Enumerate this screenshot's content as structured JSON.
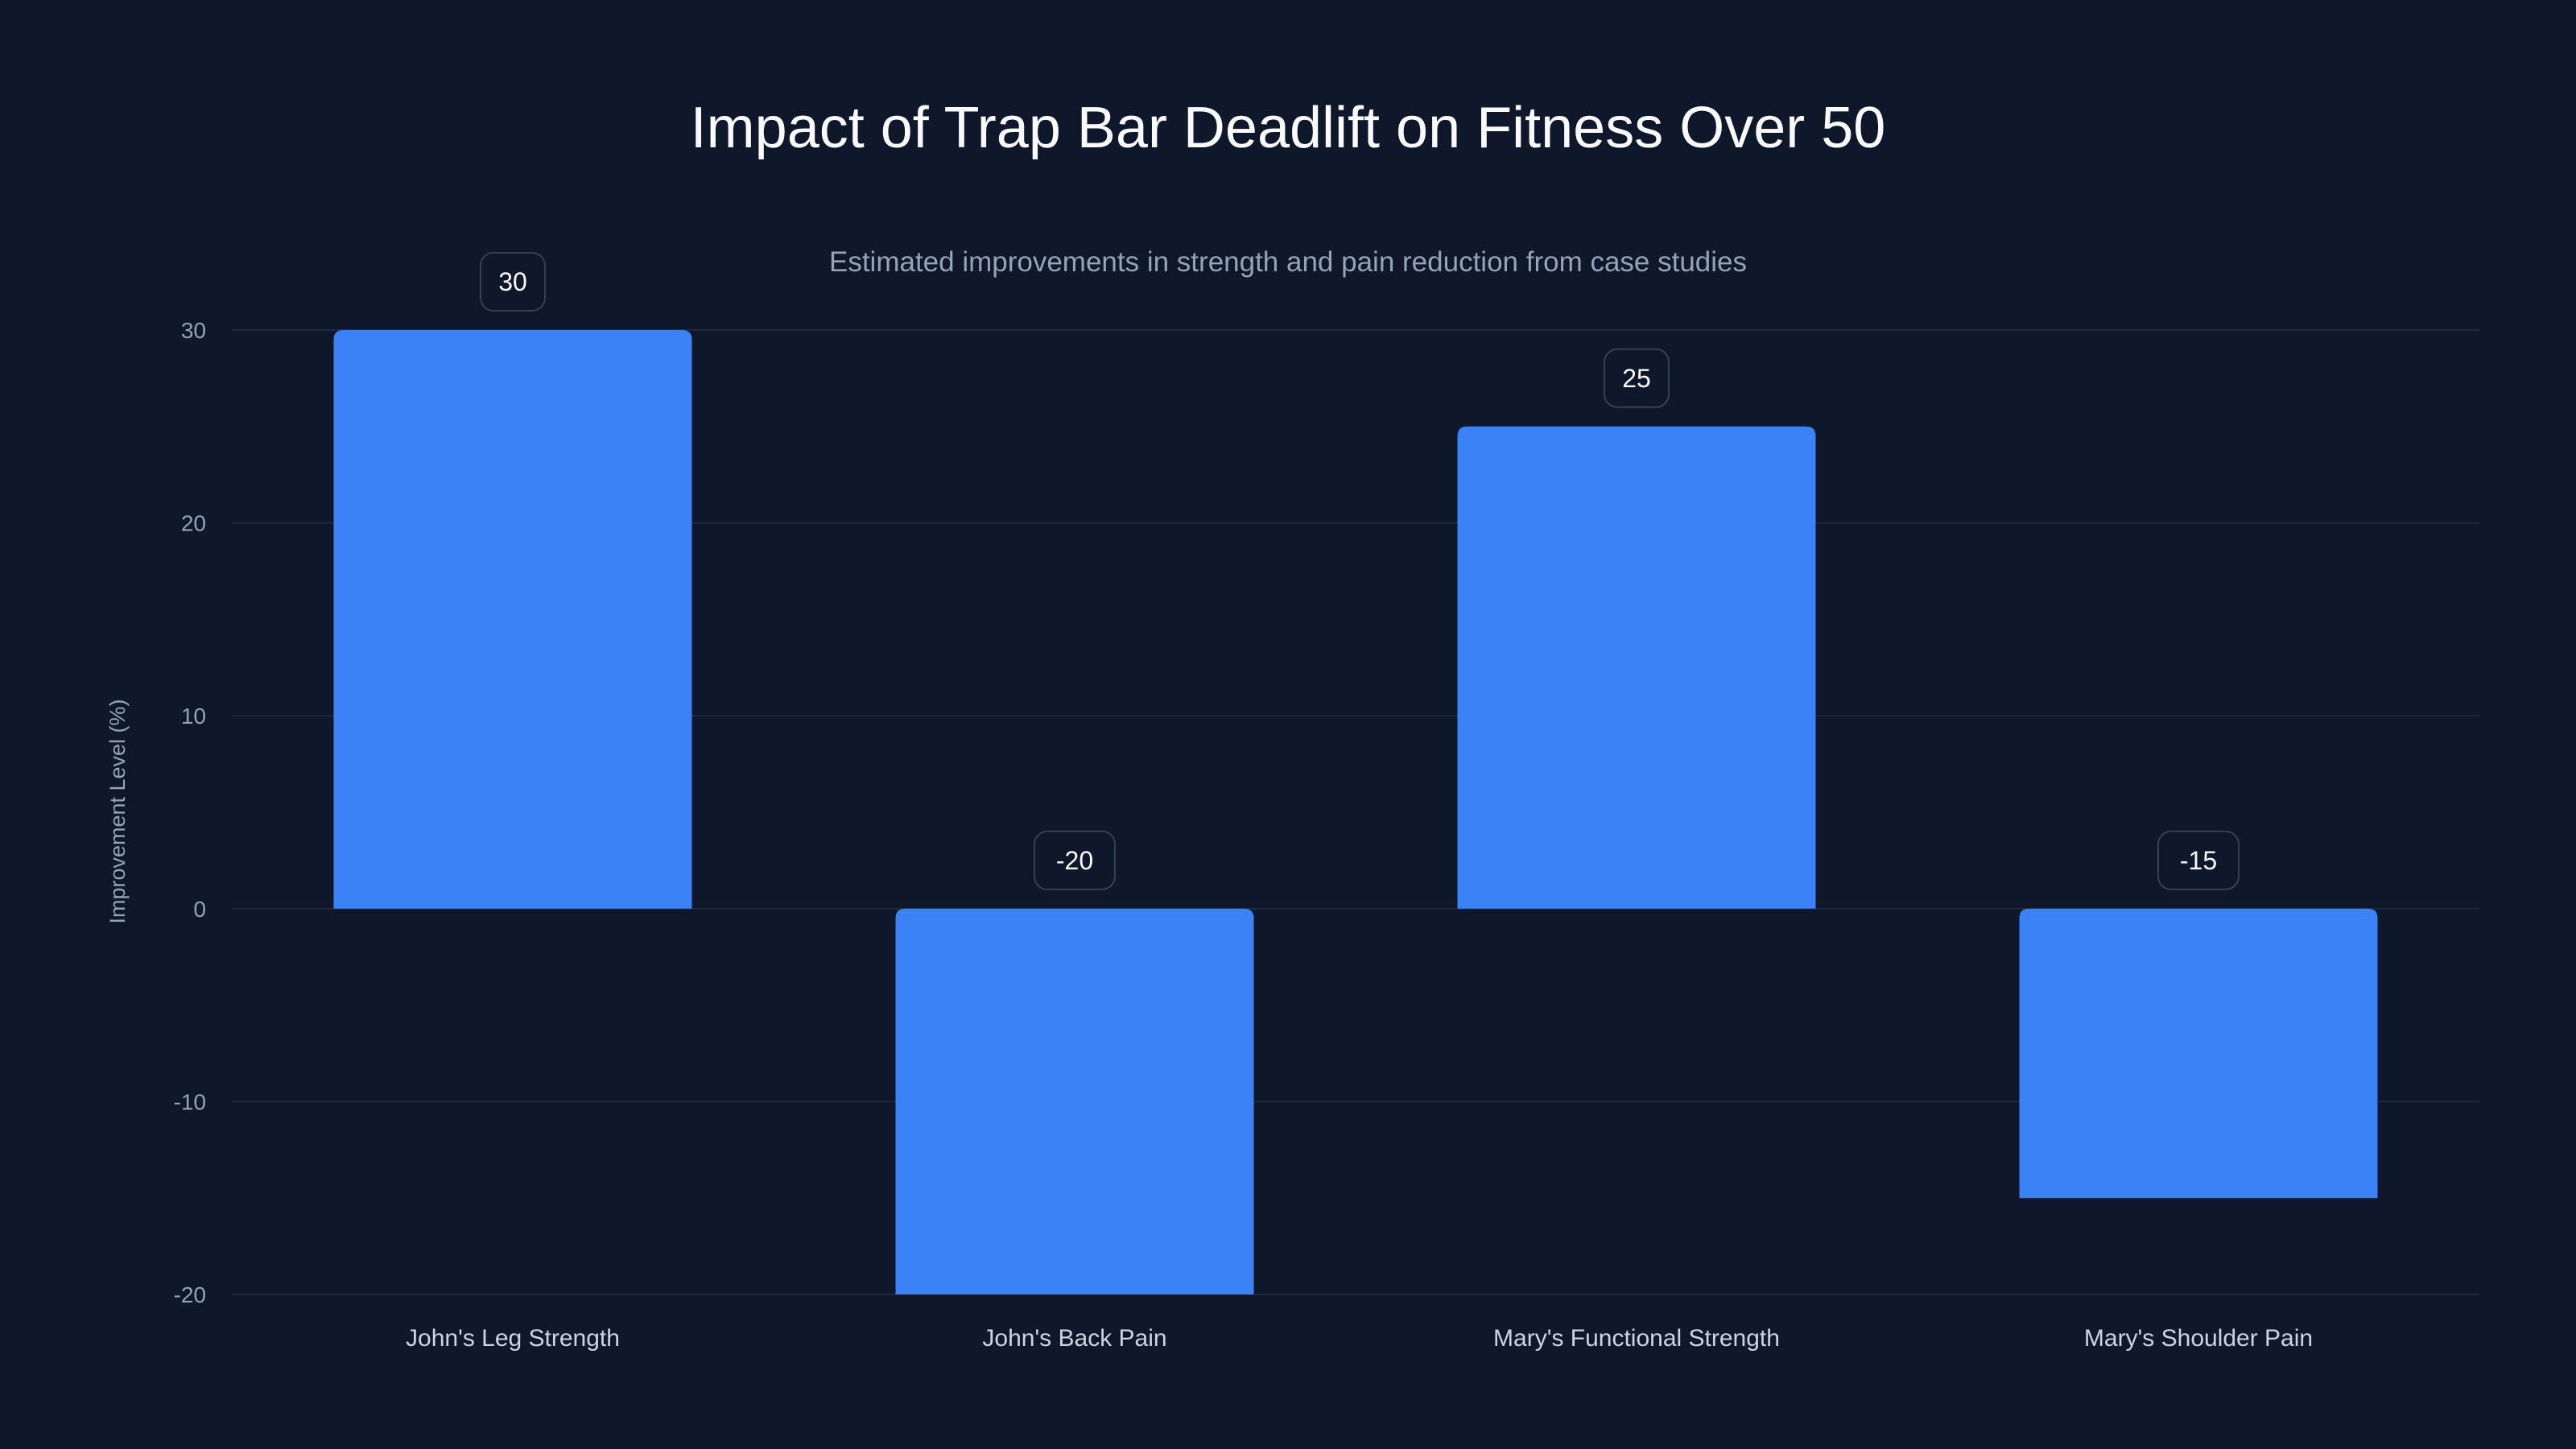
{
  "chart_data": {
    "type": "bar",
    "title": "Impact of Trap Bar Deadlift on Fitness Over 50",
    "subtitle": "Estimated improvements in strength and pain reduction from case studies",
    "xlabel": "",
    "ylabel": "Improvement Level (%)",
    "categories": [
      "John's Leg Strength",
      "John's Back Pain",
      "Mary's Functional Strength",
      "Mary's Shoulder Pain"
    ],
    "values": [
      30,
      -20,
      25,
      -15
    ],
    "data_labels": [
      "30",
      "-20",
      "25",
      "-15"
    ],
    "ylim": [
      -20,
      30
    ],
    "yticks": [
      -20,
      -10,
      0,
      10,
      20,
      30
    ],
    "grid": true,
    "legend": "none",
    "colors": {
      "background": "#0f172a",
      "bar": "#3b82f6",
      "grid": "#1e293b",
      "tick_text": "#94a3b8",
      "category_text": "#cbd5e1",
      "label_border": "#334155"
    }
  }
}
